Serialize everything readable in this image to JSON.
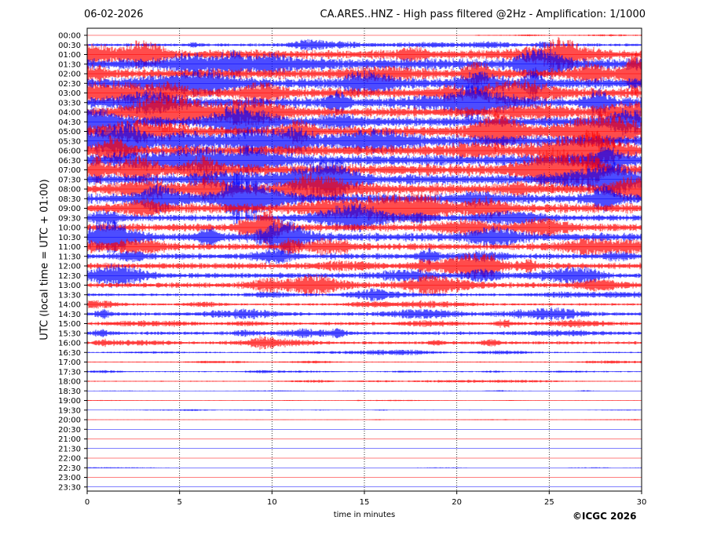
{
  "header": {
    "date": "06-02-2026",
    "title": "CA.ARES..HNZ - High pass filtered @2Hz - Amplification: 1/1000"
  },
  "footer": {
    "copyright": "©ICGC 2026"
  },
  "chart_data": {
    "type": "line",
    "title": "CA.ARES..HNZ - High pass filtered @2Hz - Amplification: 1/1000",
    "xlabel": "time in minutes",
    "ylabel": "UTC (local time = UTC + 01:00)",
    "xlim": [
      0,
      30
    ],
    "xticks": [
      0,
      5,
      10,
      15,
      20,
      25,
      30
    ],
    "grid": "vertical dotted at x ticks",
    "colors": {
      "even_row": "#ff0000",
      "odd_row": "#0000ff"
    },
    "rows": [
      "00:00",
      "00:30",
      "01:00",
      "01:30",
      "02:00",
      "02:30",
      "03:00",
      "03:30",
      "04:00",
      "04:30",
      "05:00",
      "05:30",
      "06:00",
      "06:30",
      "07:00",
      "07:30",
      "08:00",
      "08:30",
      "09:00",
      "09:30",
      "10:00",
      "10:30",
      "11:00",
      "11:30",
      "12:00",
      "12:30",
      "13:00",
      "13:30",
      "14:00",
      "14:30",
      "15:00",
      "15:30",
      "16:00",
      "16:30",
      "17:00",
      "17:30",
      "18:00",
      "18:30",
      "19:00",
      "19:30",
      "20:00",
      "20:30",
      "21:00",
      "21:30",
      "22:00",
      "22:30",
      "23:00",
      "23:30"
    ],
    "relative_amplitude": [
      0.08,
      0.25,
      0.75,
      0.95,
      0.85,
      0.9,
      0.85,
      0.85,
      0.8,
      0.85,
      0.9,
      0.95,
      0.95,
      0.95,
      0.95,
      0.9,
      0.9,
      0.85,
      0.8,
      0.55,
      0.65,
      0.7,
      0.55,
      0.5,
      0.55,
      0.45,
      0.45,
      0.25,
      0.2,
      0.3,
      0.28,
      0.3,
      0.25,
      0.12,
      0.08,
      0.1,
      0.08,
      0.04,
      0.03,
      0.04,
      0.03,
      0.02,
      0.02,
      0.02,
      0.02,
      0.03,
      0.02,
      0.02
    ]
  }
}
